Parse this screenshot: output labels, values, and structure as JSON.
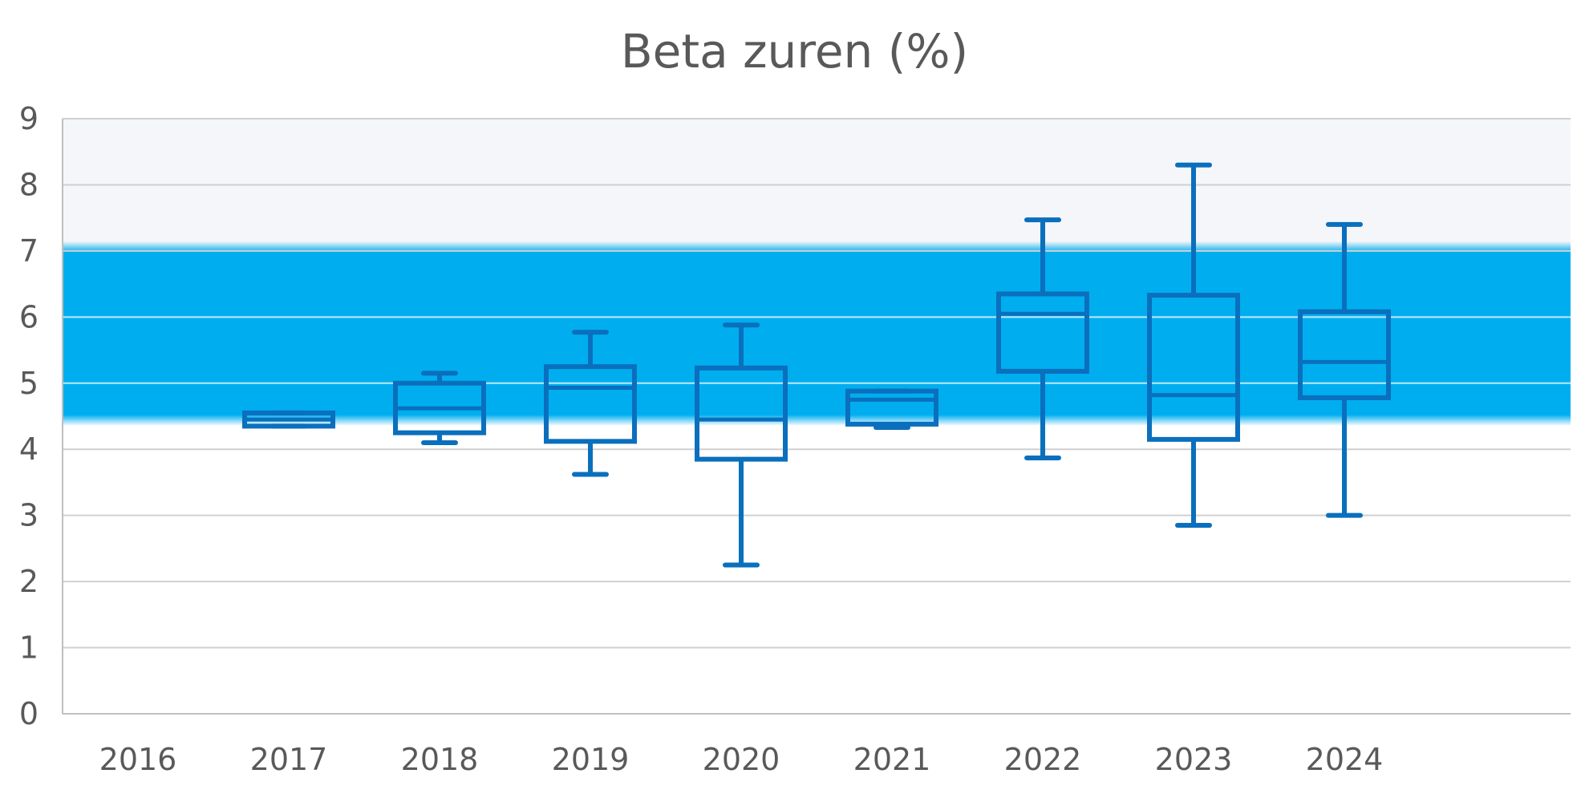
{
  "chart_data": {
    "type": "boxplot",
    "title": "Beta zuren (%)",
    "xlabel": "",
    "ylabel": "",
    "ylim": [
      0,
      9
    ],
    "yticks": [
      "0",
      "1",
      "2",
      "3",
      "4",
      "5",
      "6",
      "7",
      "8",
      "9"
    ],
    "categories": [
      "2016",
      "2017",
      "2018",
      "2019",
      "2020",
      "2021",
      "2022",
      "2023",
      "2024"
    ],
    "boxes": [
      null,
      {
        "min": 4.35,
        "q1": 4.35,
        "median": 4.45,
        "q3": 4.55,
        "max": 4.55
      },
      {
        "min": 4.1,
        "q1": 4.25,
        "median": 4.62,
        "q3": 5.0,
        "max": 5.15
      },
      {
        "min": 3.62,
        "q1": 4.12,
        "median": 4.93,
        "q3": 5.25,
        "max": 5.77
      },
      {
        "min": 2.25,
        "q1": 3.85,
        "median": 4.45,
        "q3": 5.23,
        "max": 5.88
      },
      {
        "min": 4.33,
        "q1": 4.38,
        "median": 4.75,
        "q3": 4.88,
        "max": 4.88
      },
      {
        "min": 3.87,
        "q1": 5.18,
        "median": 6.05,
        "q3": 6.35,
        "max": 7.47
      },
      {
        "min": 2.85,
        "q1": 4.15,
        "median": 4.82,
        "q3": 6.33,
        "max": 8.3
      },
      {
        "min": 3.0,
        "q1": 4.78,
        "median": 5.32,
        "q3": 6.08,
        "max": 7.4
      }
    ],
    "band": {
      "from": 4.5,
      "to": 7.0
    },
    "grid": true,
    "legend": "none",
    "colors": {
      "box": "#0a6fbd",
      "band": "#00aeef",
      "upper_area": "#f5f6fa",
      "grid": "#d0d0d0",
      "axis": "#bfbfbf",
      "text": "#595959"
    }
  }
}
